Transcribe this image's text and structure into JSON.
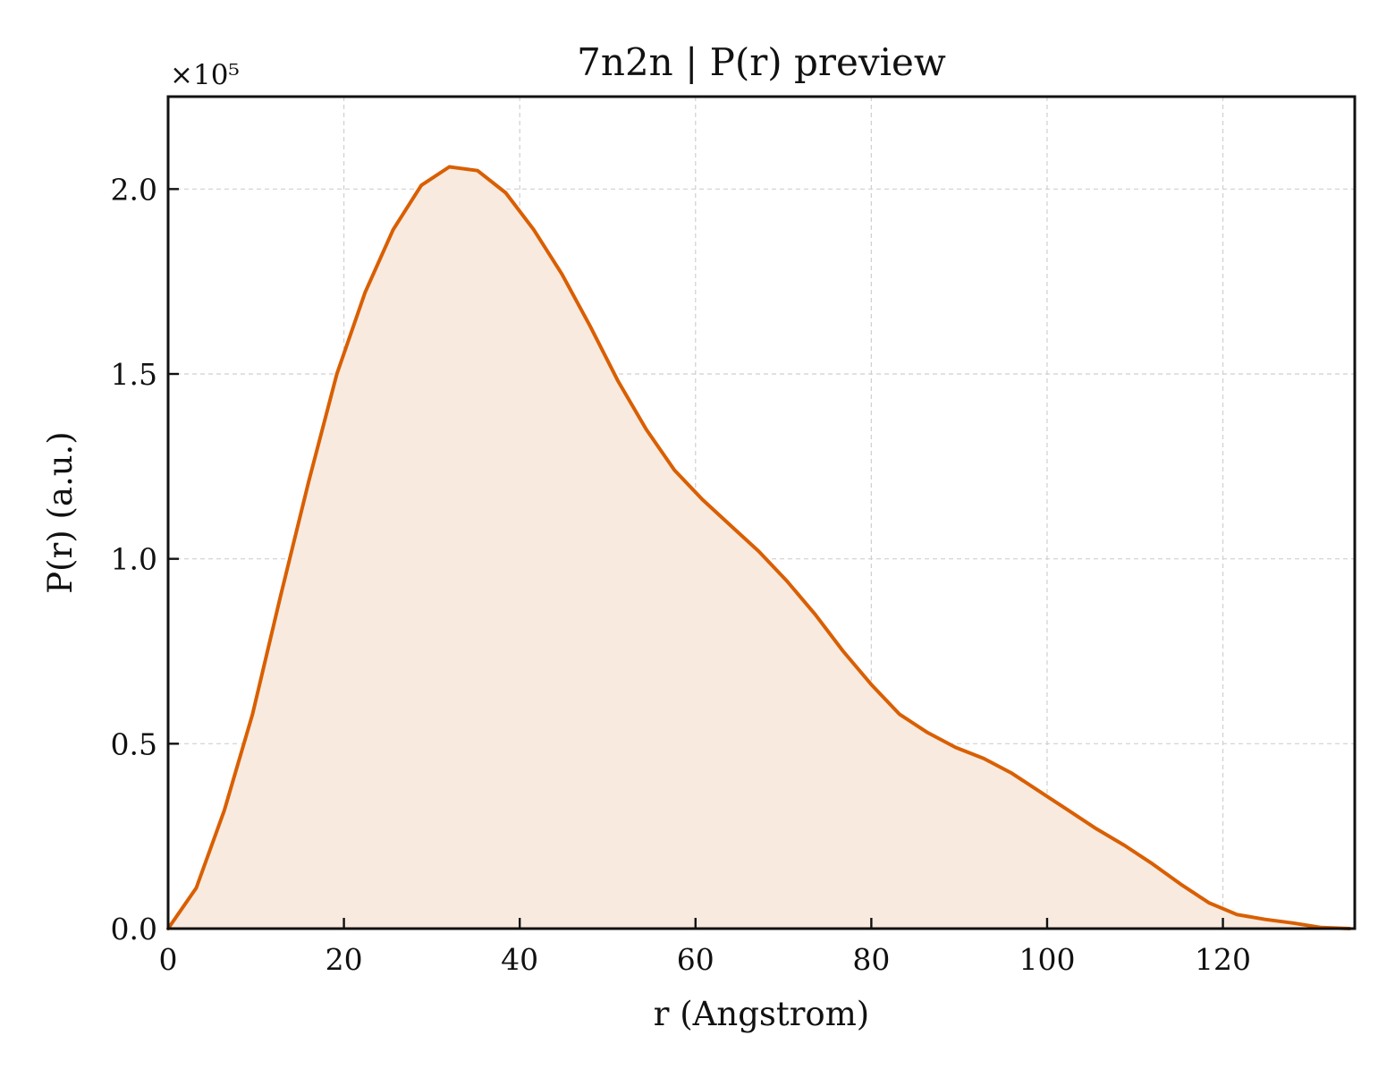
{
  "chart_data": {
    "type": "area",
    "title": "7n2n | P(r) preview",
    "xlabel": "r (Angstrom)",
    "ylabel": "P(r) (a.u.)",
    "y_multiplier_label": "×10⁵",
    "xlim": [
      0,
      135
    ],
    "ylim": [
      0,
      2.25
    ],
    "xticks": [
      0,
      20,
      40,
      60,
      80,
      100,
      120
    ],
    "xtick_labels": [
      "0",
      "20",
      "40",
      "60",
      "80",
      "100",
      "120"
    ],
    "yticks": [
      0.0,
      0.5,
      1.0,
      1.5,
      2.0
    ],
    "ytick_labels": [
      "0.0",
      "0.5",
      "1.0",
      "1.5",
      "2.0"
    ],
    "grid": true,
    "legend": false,
    "colors": {
      "line": "#d95f02",
      "fill": "#f9eadf"
    },
    "series": [
      {
        "x": [
          0,
          3.2,
          6.4,
          9.6,
          12.8,
          16.0,
          19.2,
          22.4,
          25.6,
          28.8,
          32.0,
          35.2,
          38.4,
          41.6,
          44.8,
          48.0,
          51.2,
          54.4,
          57.6,
          60.8,
          64.0,
          67.2,
          70.4,
          73.6,
          76.8,
          80.0,
          83.2,
          86.4,
          89.6,
          92.8,
          96.0,
          99.2,
          102.4,
          105.6,
          108.8,
          112.0,
          115.2,
          118.4,
          121.6,
          124.8,
          128.0,
          131.2,
          134.4
        ],
        "values": [
          0.0,
          0.11,
          0.32,
          0.58,
          0.9,
          1.21,
          1.5,
          1.72,
          1.89,
          2.01,
          2.06,
          2.05,
          1.99,
          1.89,
          1.77,
          1.63,
          1.48,
          1.35,
          1.24,
          1.16,
          1.09,
          1.02,
          0.94,
          0.85,
          0.75,
          0.66,
          0.58,
          0.53,
          0.49,
          0.46,
          0.42,
          0.37,
          0.32,
          0.27,
          0.225,
          0.175,
          0.12,
          0.07,
          0.038,
          0.025,
          0.015,
          0.003,
          0.0
        ]
      }
    ]
  }
}
